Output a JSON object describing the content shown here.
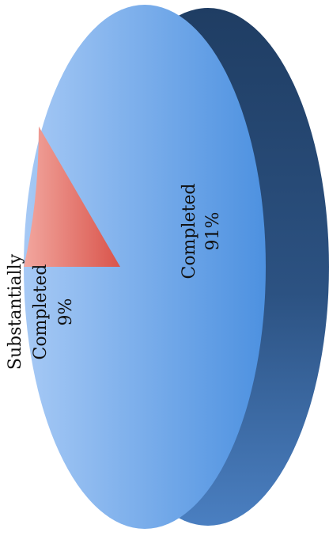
{
  "chart_data": {
    "type": "pie",
    "style": "3d",
    "orientation": "rotated-90-ccw",
    "slices": [
      {
        "label": "Completed",
        "value_label": "91%",
        "value": 91,
        "color": "#6aa6ea"
      },
      {
        "label": "Substantially Completed",
        "label_lines": [
          "Substantially",
          "Completed"
        ],
        "value_label": "9%",
        "value": 9,
        "color": "#e8736a"
      }
    ],
    "side_color": "#2a4f7e"
  }
}
